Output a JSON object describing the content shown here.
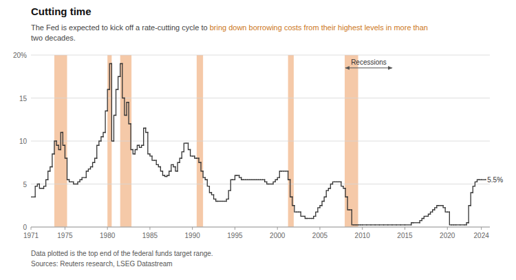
{
  "chart_data": {
    "type": "step",
    "title": "Cutting time",
    "subtitle": [
      [
        {
          "text": "The Fed is expected to kick off a rate-cutting cycle to "
        },
        {
          "text": "bring down borrowing costs from their highest levels in more than",
          "color": "#CC7722"
        }
      ],
      [
        {
          "text": "two decades."
        }
      ]
    ],
    "notes": [
      "Data plotted is the top end of the federal funds target range.",
      "Sources: Reuters research, LSEG Datastream"
    ],
    "color": "#333333",
    "grid": true,
    "xlim": [
      1971,
      2025
    ],
    "xticks": [
      1971,
      1975,
      1980,
      1985,
      1990,
      1995,
      2000,
      2005,
      2010,
      2015,
      2020,
      2024
    ],
    "ylim": [
      0,
      20
    ],
    "yticks": [
      0,
      5,
      10,
      15,
      {
        "value": 20,
        "label": "20%"
      }
    ],
    "recessions": {
      "color": "#F5C9A8",
      "periods": [
        [
          1973.75,
          1975.25
        ],
        [
          1980.0,
          1980.5
        ],
        [
          1981.5,
          1982.83
        ],
        [
          1990.5,
          1991.25
        ],
        [
          2001.25,
          2001.92
        ],
        [
          2007.92,
          2009.5
        ]
      ]
    },
    "annotations": [
      {
        "text": "5.5%",
        "x": 2024.7,
        "y": 5.5
      },
      {
        "text": "Recessions",
        "x": 2010.75,
        "y": 18.5,
        "arrow": [
          2008.0,
          2013.5
        ]
      }
    ],
    "x": [
      1971.0,
      1971.5,
      1971.75,
      1972.0,
      1972.5,
      1972.75,
      1973.0,
      1973.25,
      1973.5,
      1973.75,
      1974.0,
      1974.25,
      1974.5,
      1974.75,
      1975.0,
      1975.25,
      1975.5,
      1975.75,
      1976.0,
      1976.5,
      1976.75,
      1977.0,
      1977.5,
      1977.75,
      1978.0,
      1978.25,
      1978.5,
      1978.75,
      1979.0,
      1979.25,
      1979.5,
      1979.75,
      1980.0,
      1980.25,
      1980.5,
      1980.75,
      1981.0,
      1981.25,
      1981.5,
      1981.75,
      1982.0,
      1982.25,
      1982.5,
      1982.75,
      1983.0,
      1983.25,
      1983.5,
      1983.75,
      1984.0,
      1984.25,
      1984.5,
      1984.75,
      1985.0,
      1985.25,
      1985.5,
      1985.75,
      1986.0,
      1986.25,
      1986.5,
      1986.75,
      1987.0,
      1987.25,
      1987.5,
      1987.75,
      1988.0,
      1988.25,
      1988.5,
      1988.75,
      1989.0,
      1989.25,
      1989.5,
      1989.75,
      1990.0,
      1990.25,
      1990.5,
      1990.75,
      1991.0,
      1991.25,
      1991.5,
      1991.75,
      1992.0,
      1992.25,
      1992.5,
      1992.75,
      1993.0,
      1993.25,
      1993.5,
      1993.75,
      1994.0,
      1994.25,
      1994.5,
      1994.75,
      1995.0,
      1995.25,
      1995.5,
      1995.75,
      1996.0,
      1996.25,
      1996.5,
      1996.75,
      1997.0,
      1997.25,
      1997.5,
      1997.75,
      1998.0,
      1998.25,
      1998.5,
      1998.75,
      1999.0,
      1999.25,
      1999.5,
      1999.75,
      2000.0,
      2000.25,
      2000.5,
      2000.75,
      2001.0,
      2001.25,
      2001.5,
      2001.75,
      2002.0,
      2002.25,
      2002.5,
      2002.75,
      2003.0,
      2003.25,
      2003.5,
      2003.75,
      2004.0,
      2004.25,
      2004.5,
      2004.75,
      2005.0,
      2005.25,
      2005.5,
      2005.75,
      2006.0,
      2006.25,
      2006.5,
      2006.75,
      2007.0,
      2007.25,
      2007.5,
      2007.75,
      2008.0,
      2008.25,
      2008.5,
      2008.75,
      2009.0,
      2009.25,
      2009.5,
      2009.75,
      2010.0,
      2010.5,
      2011.0,
      2011.5,
      2012.0,
      2012.5,
      2013.0,
      2013.5,
      2014.0,
      2014.5,
      2015.0,
      2015.75,
      2016.0,
      2016.75,
      2017.0,
      2017.25,
      2017.5,
      2017.75,
      2018.0,
      2018.25,
      2018.5,
      2018.75,
      2019.0,
      2019.25,
      2019.5,
      2019.75,
      2020.0,
      2020.25,
      2020.5,
      2020.75,
      2021.0,
      2021.5,
      2022.0,
      2022.25,
      2022.5,
      2022.75,
      2023.0,
      2023.25,
      2023.5,
      2023.75,
      2024.0,
      2024.5
    ],
    "values": [
      3.5,
      4.75,
      5.0,
      4.5,
      4.75,
      5.5,
      6.5,
      7.0,
      8.5,
      10.0,
      9.5,
      9.0,
      11.0,
      9.5,
      8.0,
      5.5,
      5.25,
      5.25,
      5.0,
      5.25,
      5.5,
      5.75,
      6.5,
      6.75,
      7.0,
      7.5,
      8.0,
      9.5,
      10.0,
      10.5,
      11.0,
      13.5,
      16.0,
      19.0,
      10.0,
      13.0,
      16.0,
      17.5,
      19.0,
      15.0,
      13.0,
      14.5,
      12.0,
      9.0,
      8.5,
      9.0,
      9.5,
      9.25,
      9.5,
      11.5,
      11.0,
      8.5,
      8.25,
      7.75,
      7.75,
      7.25,
      7.0,
      6.5,
      6.0,
      5.875,
      6.0,
      6.5,
      7.25,
      7.0,
      6.5,
      7.5,
      8.0,
      8.75,
      9.75,
      9.75,
      9.0,
      8.25,
      8.25,
      8.0,
      8.0,
      7.5,
      6.5,
      5.75,
      5.5,
      4.75,
      4.0,
      3.75,
      3.25,
      3.0,
      3.0,
      3.0,
      3.0,
      3.0,
      3.25,
      4.25,
      5.5,
      5.5,
      6.0,
      6.0,
      5.75,
      5.5,
      5.5,
      5.5,
      5.5,
      5.5,
      5.5,
      5.5,
      5.5,
      5.5,
      5.5,
      5.5,
      5.25,
      5.0,
      5.0,
      5.0,
      5.25,
      5.5,
      5.75,
      6.5,
      6.5,
      6.5,
      6.5,
      5.5,
      3.5,
      2.5,
      1.75,
      1.75,
      1.75,
      1.25,
      1.25,
      1.0,
      1.0,
      1.0,
      1.0,
      1.25,
      1.75,
      2.25,
      2.5,
      3.0,
      3.5,
      4.25,
      4.5,
      5.0,
      5.25,
      5.25,
      5.25,
      5.25,
      4.75,
      4.5,
      3.5,
      2.0,
      2.0,
      0.25,
      0.25,
      0.25,
      0.25,
      0.25,
      0.25,
      0.25,
      0.25,
      0.25,
      0.25,
      0.25,
      0.25,
      0.25,
      0.25,
      0.25,
      0.25,
      0.5,
      0.5,
      0.75,
      1.0,
      1.25,
      1.25,
      1.5,
      1.75,
      2.0,
      2.25,
      2.5,
      2.5,
      2.5,
      2.25,
      1.75,
      1.75,
      0.25,
      0.25,
      0.25,
      0.25,
      0.25,
      0.25,
      0.5,
      2.5,
      4.0,
      4.75,
      5.25,
      5.5,
      5.5,
      5.5,
      5.5
    ]
  }
}
